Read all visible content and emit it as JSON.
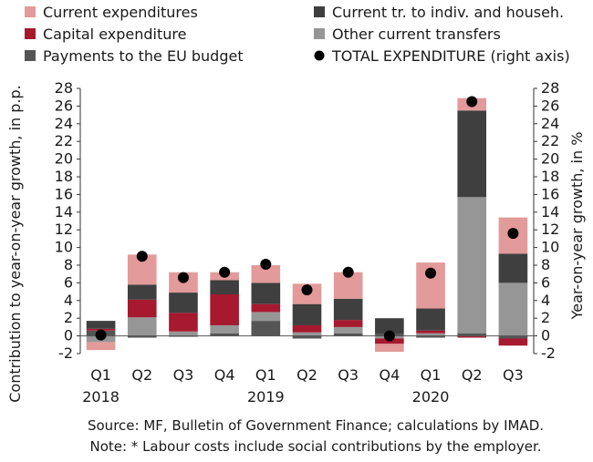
{
  "chart_data": {
    "type": "bar",
    "stacked": true,
    "categories": [
      "Q1",
      "Q2",
      "Q3",
      "Q4",
      "Q1",
      "Q2",
      "Q3",
      "Q4",
      "Q1",
      "Q2",
      "Q3"
    ],
    "year_labels": [
      {
        "index": 0,
        "label": "2018"
      },
      {
        "index": 4,
        "label": "2019"
      },
      {
        "index": 8,
        "label": "2020"
      }
    ],
    "ylabel": "Contribution to year-on-year growth, in p.p.",
    "y2label": "Year-on-year growth, in %",
    "ylim": [
      -2,
      28
    ],
    "y2lim": [
      -2,
      28
    ],
    "yticks": [
      -2,
      0,
      2,
      4,
      6,
      8,
      10,
      12,
      14,
      16,
      18,
      20,
      22,
      24,
      26,
      28
    ],
    "series": [
      {
        "name": "Payments to the EU budget",
        "color": "#555555",
        "values": [
          0.6,
          -0.2,
          -0.1,
          0.3,
          1.7,
          -0.3,
          0.3,
          0.2,
          -0.2,
          0.3,
          -0.3
        ]
      },
      {
        "name": "Other current transfers",
        "color": "#969696",
        "values": [
          -0.7,
          2.1,
          0.5,
          0.9,
          1.0,
          0.4,
          0.7,
          -0.3,
          0.3,
          15.4,
          6.0
        ]
      },
      {
        "name": "Capital expenditure",
        "color": "#a6192e",
        "values": [
          0.2,
          2.0,
          2.1,
          3.5,
          0.9,
          0.8,
          0.8,
          -0.6,
          0.3,
          -0.2,
          -0.8
        ]
      },
      {
        "name": "Current tr. to indiv. and househ.",
        "color": "#3f3f3f",
        "values": [
          0.9,
          1.7,
          2.3,
          1.6,
          2.4,
          2.4,
          2.4,
          1.8,
          2.5,
          9.8,
          3.3
        ]
      },
      {
        "name": "Current expenditures",
        "color": "#e39a9a",
        "values": [
          -0.9,
          3.4,
          2.3,
          0.9,
          2.0,
          2.3,
          3.0,
          -0.9,
          5.2,
          1.4,
          4.1
        ]
      }
    ],
    "line": {
      "name": "TOTAL EXPENDITURE (right axis)",
      "axis": "right",
      "color": "#000000",
      "values": [
        0.1,
        9.0,
        6.6,
        7.2,
        8.1,
        5.2,
        7.2,
        0.0,
        7.1,
        26.5,
        11.6
      ]
    },
    "legend_position": "top",
    "grid": false
  },
  "notes": {
    "source": "Source: MF, Bulletin of Government Finance; calculations by IMAD.",
    "note": "Note: * Labour costs include social contributions by the employer."
  }
}
